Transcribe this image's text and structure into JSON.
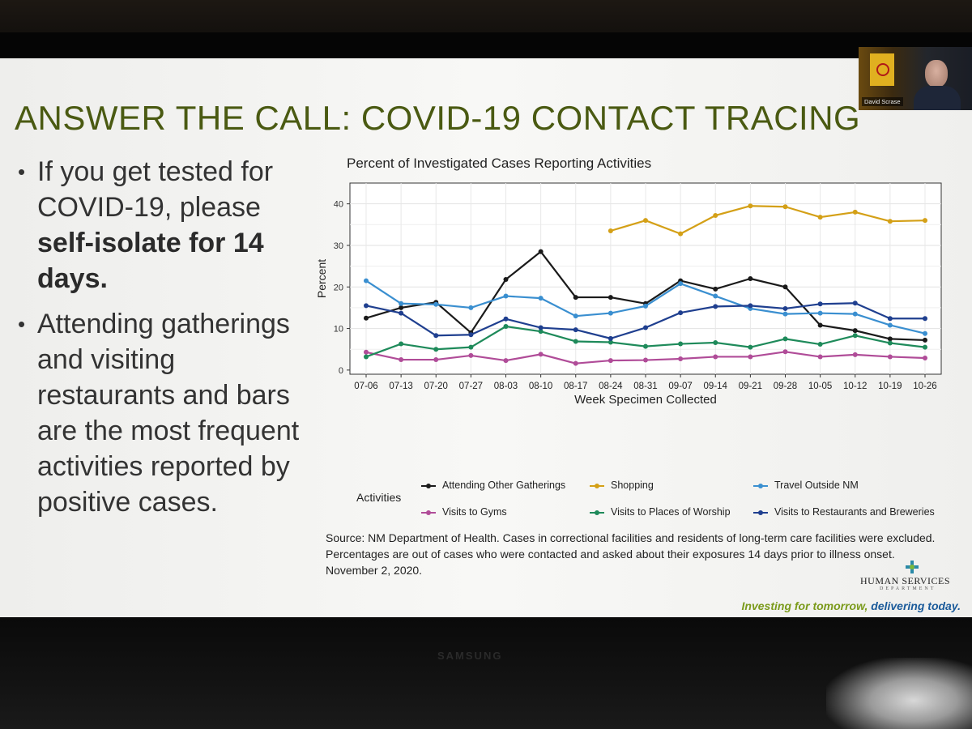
{
  "slide": {
    "title": "ANSWER THE CALL: COVID-19 CONTACT TRACING",
    "bullets": [
      {
        "pre": "If you get tested for COVID-19, please ",
        "bold": "self-isolate for 14 days.",
        "post": ""
      },
      {
        "pre": "Attending gatherings and visiting restaurants and bars are the most frequent activities reported by positive cases.",
        "bold": "",
        "post": ""
      }
    ],
    "source": "Source: NM Department of Health. Cases in correctional facilities and residents of long-term care facilities were excluded. Percentages are out of cases who were contacted and asked about their exposures 14 days prior to illness onset. November 2, 2020.",
    "logo_text": "HUMAN SERVICES",
    "logo_subtext": "DEPARTMENT",
    "tagline_part1": "Investing for tomorrow, ",
    "tagline_part2": "delivering today."
  },
  "video_tile": {
    "name": "David Scrase"
  },
  "screen_brand": "SAMSUNG",
  "chart_data": {
    "type": "line",
    "title": "Percent of Investigated Cases Reporting Activities",
    "xlabel": "Week Specimen Collected",
    "ylabel": "Percent",
    "ylim": [
      -1,
      45
    ],
    "yticks": [
      0,
      10,
      20,
      30,
      40
    ],
    "grid": true,
    "legend_title": "Activities",
    "legend_position": "bottom",
    "x": [
      "07-06",
      "07-13",
      "07-20",
      "07-27",
      "08-03",
      "08-10",
      "08-17",
      "08-24",
      "08-31",
      "09-07",
      "09-14",
      "09-21",
      "09-28",
      "10-05",
      "10-12",
      "10-19",
      "10-26"
    ],
    "series": [
      {
        "name": "Attending Other Gatherings",
        "color": "#1a1a1a",
        "values": [
          12.5,
          15.0,
          16.3,
          9.0,
          21.8,
          28.5,
          17.5,
          17.5,
          16.0,
          21.5,
          19.5,
          22.0,
          20.0,
          10.8,
          9.5,
          7.5,
          7.2
        ]
      },
      {
        "name": "Shopping",
        "color": "#d4a017",
        "values": [
          null,
          null,
          null,
          null,
          null,
          null,
          null,
          33.5,
          36.0,
          32.8,
          37.2,
          39.5,
          39.3,
          36.8,
          38.0,
          35.8,
          36.0
        ]
      },
      {
        "name": "Travel Outside NM",
        "color": "#3a8fd0",
        "values": [
          21.5,
          16.0,
          15.8,
          15.0,
          17.8,
          17.3,
          13.0,
          13.7,
          15.4,
          20.8,
          17.8,
          14.8,
          13.5,
          13.7,
          13.5,
          10.8,
          8.8
        ]
      },
      {
        "name": "Visits to Gyms",
        "color": "#b04c98",
        "values": [
          4.3,
          2.5,
          2.5,
          3.5,
          2.3,
          3.8,
          1.6,
          2.3,
          2.4,
          2.7,
          3.2,
          3.2,
          4.4,
          3.2,
          3.7,
          3.2,
          2.9
        ]
      },
      {
        "name": "Visits to Places of Worship",
        "color": "#1e8a5a",
        "values": [
          3.2,
          6.3,
          5.0,
          5.5,
          10.5,
          9.3,
          6.9,
          6.7,
          5.7,
          6.3,
          6.6,
          5.5,
          7.5,
          6.2,
          8.3,
          6.5,
          5.5
        ]
      },
      {
        "name": "Visits to Restaurants and Breweries",
        "color": "#1f3f8f",
        "values": [
          15.5,
          13.7,
          8.3,
          8.5,
          12.3,
          10.2,
          9.7,
          7.6,
          10.2,
          13.8,
          15.3,
          15.5,
          14.8,
          15.9,
          16.1,
          12.4,
          12.4
        ]
      }
    ]
  }
}
